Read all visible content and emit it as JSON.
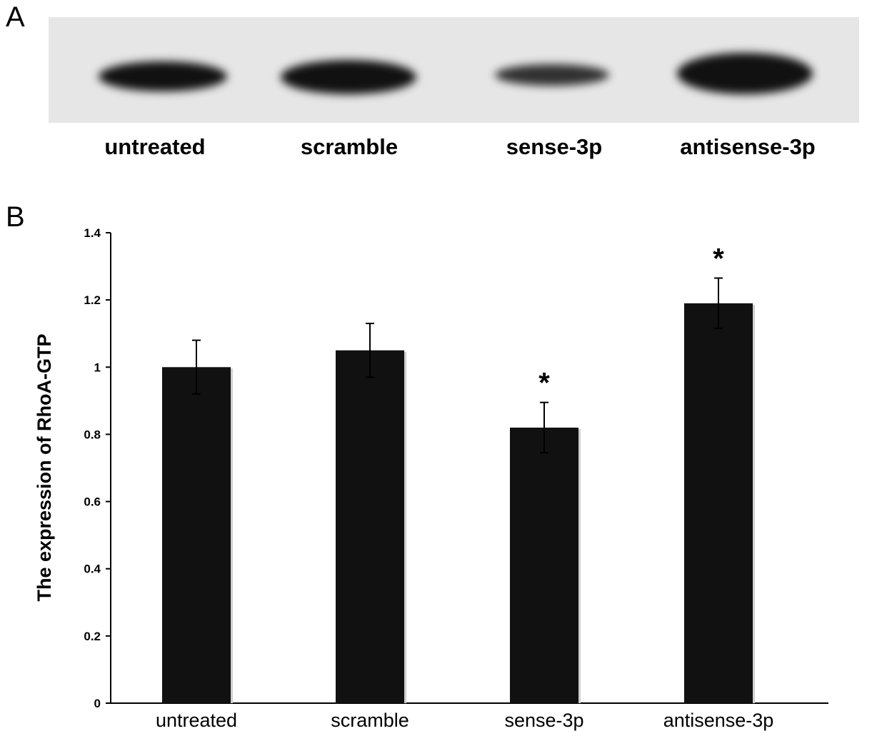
{
  "panels": {
    "a_letter": "A",
    "b_letter": "B"
  },
  "blot": {
    "lanes": [
      "untreated",
      "scramble",
      "sense-3p",
      "antisense-3p"
    ],
    "band_intensity": [
      0.92,
      0.95,
      0.75,
      1.0
    ]
  },
  "chart_data": {
    "type": "bar",
    "categories": [
      "untreated",
      "scramble",
      "sense-3p",
      "antisense-3p"
    ],
    "values": [
      1.0,
      1.05,
      0.82,
      1.19
    ],
    "errors": [
      0.08,
      0.08,
      0.075,
      0.075
    ],
    "significance": [
      "",
      "",
      "*",
      "*"
    ],
    "ylabel": "The expression of RhoA-GTP",
    "ylim": [
      0,
      1.4
    ],
    "yticks": [
      0,
      0.2,
      0.4,
      0.6,
      0.8,
      1,
      1.2,
      1.4
    ],
    "ytick_labels": [
      "0",
      "0.2",
      "0.4",
      "0.6",
      "0.8",
      "1",
      "1.2",
      "1.4"
    ],
    "grid": false,
    "bar_color": "#111111"
  }
}
